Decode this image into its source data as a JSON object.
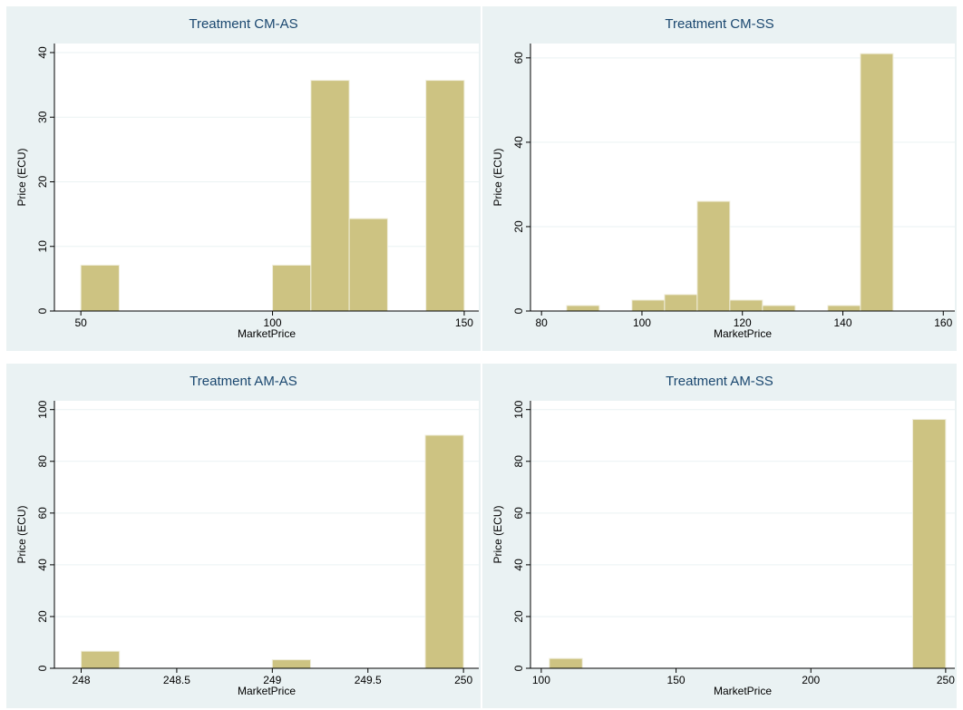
{
  "chart_data": [
    {
      "type": "histogram",
      "title": "Treatment CM-AS",
      "xlabel": "MarketPrice",
      "ylabel": "Price (ECU)",
      "bins": [
        50,
        60,
        70,
        80,
        90,
        100,
        110,
        120,
        130,
        140,
        150
      ],
      "values": [
        7.1,
        0,
        0,
        0,
        0,
        7.1,
        35.7,
        14.3,
        0,
        35.7
      ],
      "color": "#cdc382",
      "xlim": [
        43.1,
        153.8
      ],
      "ylim": [
        0,
        41.4
      ],
      "xticks": [
        50,
        100,
        150
      ],
      "yticks": [
        0,
        10,
        20,
        30,
        40
      ],
      "grid": true
    },
    {
      "type": "histogram",
      "title": "Treatment CM-SS",
      "xlabel": "MarketPrice",
      "ylabel": "Price (ECU)",
      "bins": [
        85,
        91.5,
        98,
        104.5,
        111,
        117.5,
        124,
        130.5,
        137,
        143.5,
        150
      ],
      "values": [
        1.3,
        0,
        2.6,
        3.9,
        26,
        2.6,
        1.3,
        0,
        1.3,
        61
      ],
      "color": "#cdc382",
      "xlim": [
        77.8,
        162.3
      ],
      "ylim": [
        0,
        63.4
      ],
      "xticks": [
        80,
        100,
        120,
        140,
        160
      ],
      "yticks": [
        0,
        20,
        40,
        60
      ],
      "grid": true
    },
    {
      "type": "histogram",
      "title": "Treatment AM-AS",
      "xlabel": "MarketPrice",
      "ylabel": "Price (ECU)",
      "bins": [
        248,
        248.2,
        248.4,
        248.6,
        248.8,
        249,
        249.2,
        249.4,
        249.6,
        249.8,
        250
      ],
      "values": [
        6.6,
        0,
        0,
        0,
        0,
        3.3,
        0,
        0,
        0,
        90.1
      ],
      "color": "#cdc382",
      "xlim": [
        247.86,
        250.08
      ],
      "ylim": [
        0,
        103.4
      ],
      "xticks": [
        248,
        248.5,
        249,
        249.5,
        250
      ],
      "yticks": [
        0,
        20,
        40,
        60,
        80,
        100
      ],
      "grid": true
    },
    {
      "type": "histogram",
      "title": "Treatment AM-SS",
      "xlabel": "MarketPrice",
      "ylabel": "Price (ECU)",
      "bins": [
        103,
        115.25,
        127.5,
        139.75,
        152,
        164.25,
        176.5,
        188.75,
        201,
        213.25,
        225.5,
        237.75,
        250
      ],
      "values": [
        3.8,
        0,
        0,
        0,
        0,
        0,
        0,
        0,
        0,
        0,
        0,
        96.2
      ],
      "color": "#cdc382",
      "xlim": [
        96,
        253.4
      ],
      "ylim": [
        0,
        103.4
      ],
      "xticks": [
        100,
        150,
        200,
        250
      ],
      "yticks": [
        0,
        20,
        40,
        60,
        80,
        100
      ],
      "grid": true
    }
  ]
}
